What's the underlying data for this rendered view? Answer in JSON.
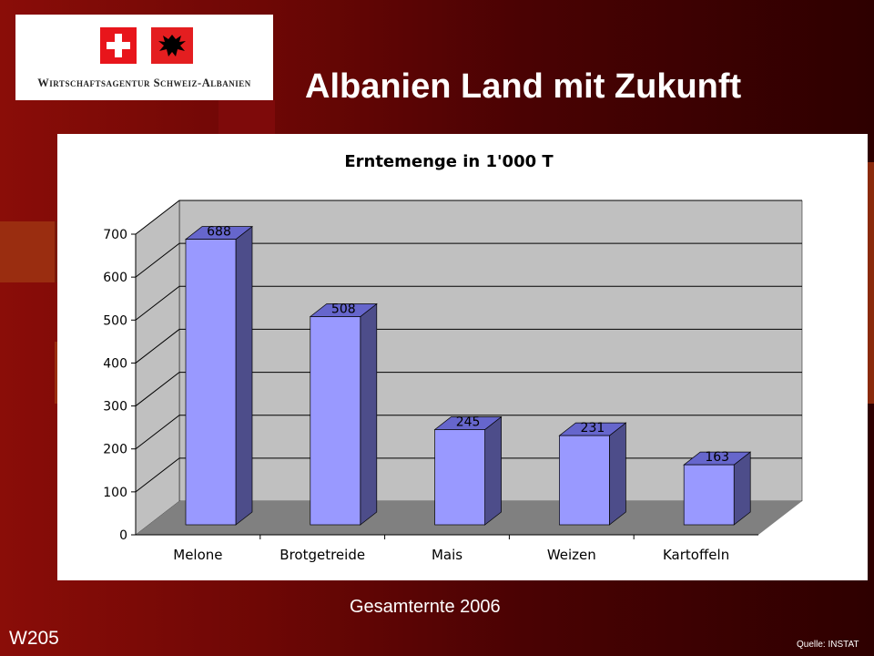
{
  "slide": {
    "title": "Albanien Land mit Zukunft",
    "caption": "Gesamternte 2006",
    "code": "W205",
    "source": "Quelle: INSTAT"
  },
  "logo": {
    "text": "Wirtschaftsagentur Schweiz-Albanien"
  },
  "colors": {
    "bar_front": "#9999ff",
    "bar_side": "#4d4d8a",
    "bar_top": "#6666cc",
    "wall": "#c0c0c0",
    "floor": "#808080"
  },
  "chart_data": {
    "type": "bar",
    "title": "Erntemenge in 1'000 T",
    "categories": [
      "Melone",
      "Brotgetreide",
      "Mais",
      "Weizen",
      "Kartoffeln"
    ],
    "values": [
      688,
      508,
      245,
      231,
      163
    ],
    "data_labels": [
      "688",
      "508",
      "245",
      "231",
      "163"
    ],
    "ylim": [
      0,
      700
    ],
    "yticks": [
      "0",
      "100",
      "200",
      "300",
      "400",
      "500",
      "600",
      "700"
    ],
    "grid": true,
    "style": "3d"
  }
}
